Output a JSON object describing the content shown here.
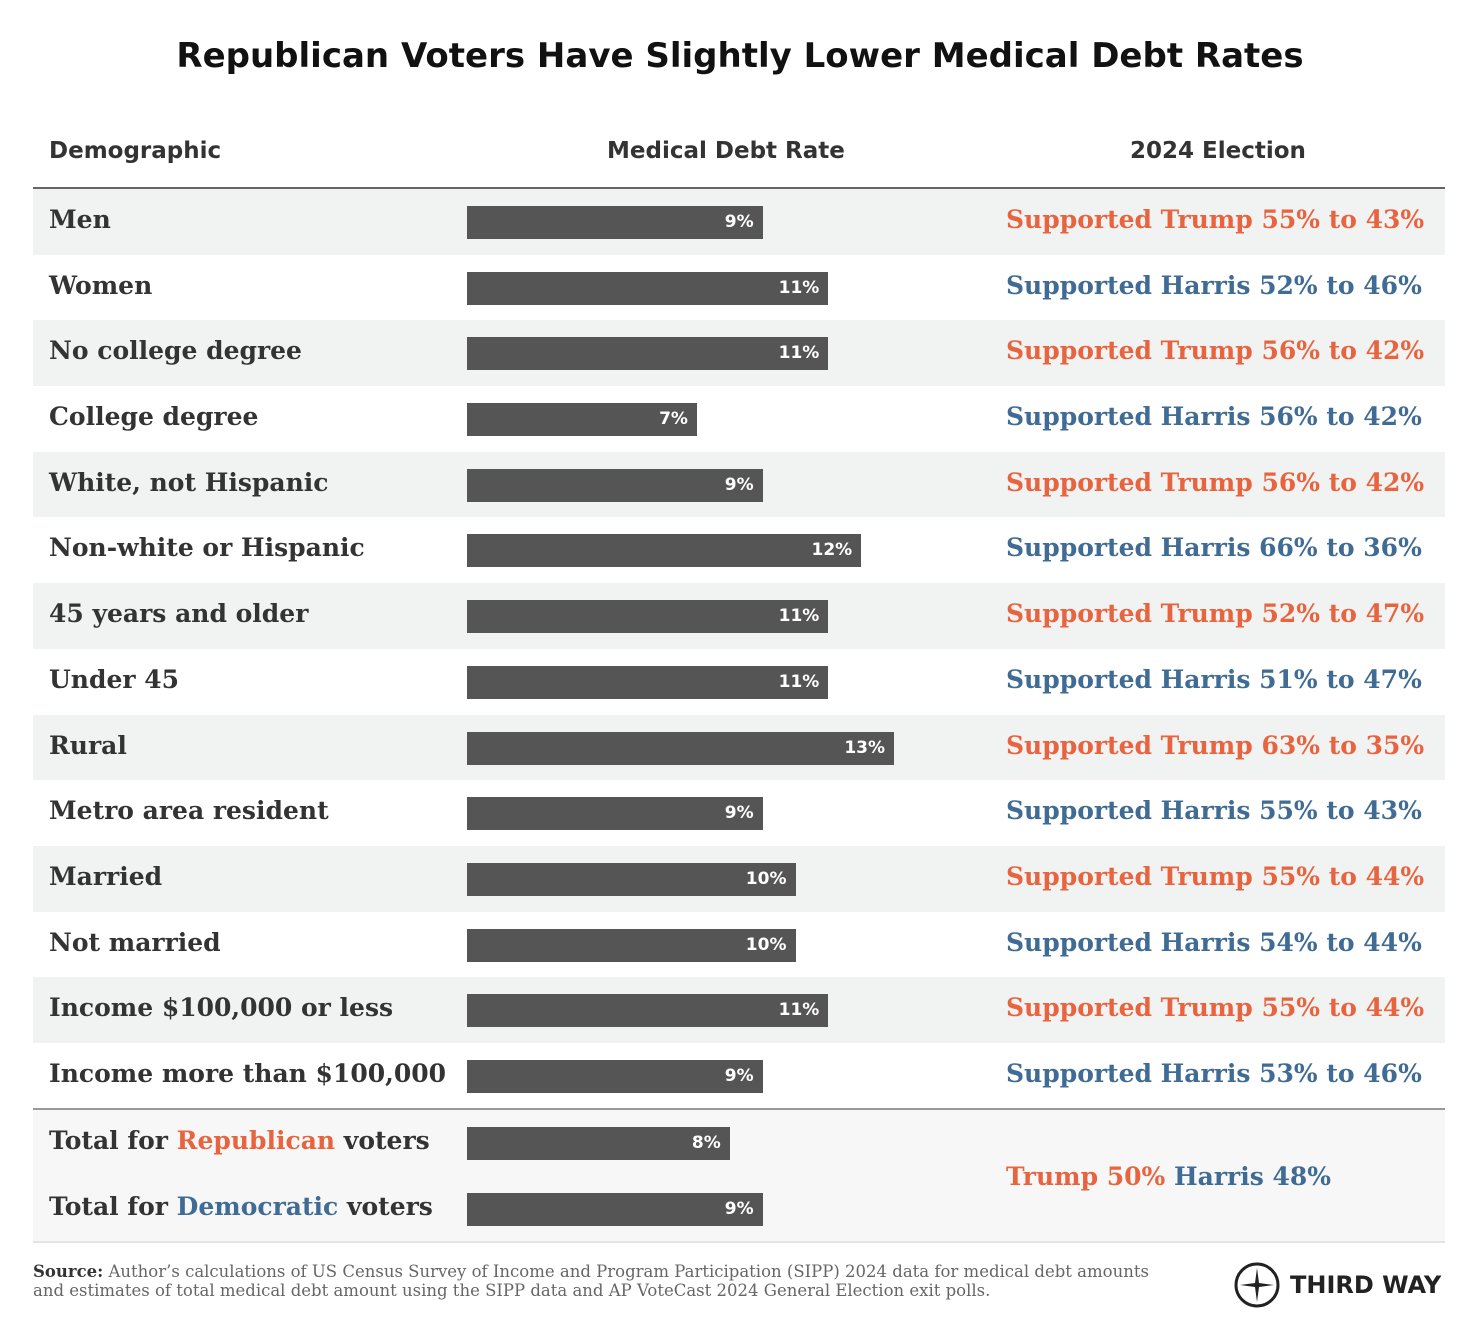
{
  "title": "Republican Voters Have Slightly Lower Medical Debt Rates",
  "headers": {
    "demographic": "Demographic",
    "rate": "Medical Debt Rate",
    "election": "2024 Election"
  },
  "colors": {
    "trump": "#e8643f",
    "harris": "#3f6b94",
    "bar": "#555555"
  },
  "chart_data": {
    "type": "bar",
    "orientation": "horizontal",
    "title": "Republican Voters Have Slightly Lower Medical Debt Rates",
    "categories": [
      "Men",
      "Women",
      "No college degree",
      "College degree",
      "White, not Hispanic",
      "Non-white or Hispanic",
      "45 years and older",
      "Under 45",
      "Rural",
      "Metro area resident",
      "Married",
      "Not married",
      "Income $100,000 or less",
      "Income more than $100,000"
    ],
    "values": [
      9,
      11,
      11,
      7,
      9,
      12,
      11,
      11,
      13,
      9,
      10,
      10,
      11,
      9
    ],
    "labels": [
      "9%",
      "11%",
      "11%",
      "7%",
      "9%",
      "12%",
      "11%",
      "11%",
      "13%",
      "9%",
      "10%",
      "10%",
      "11%",
      "9%"
    ],
    "election": [
      {
        "text": "Supported Trump 55% to 43%",
        "party": "trump"
      },
      {
        "text": "Supported Harris 52% to 46%",
        "party": "harris"
      },
      {
        "text": "Supported Trump 56% to 42%",
        "party": "trump"
      },
      {
        "text": "Supported Harris 56% to 42%",
        "party": "harris"
      },
      {
        "text": "Supported Trump 56% to 42%",
        "party": "trump"
      },
      {
        "text": "Supported Harris 66% to 36%",
        "party": "harris"
      },
      {
        "text": "Supported Trump 52% to 47%",
        "party": "trump"
      },
      {
        "text": "Supported Harris 51% to 47%",
        "party": "harris"
      },
      {
        "text": "Supported Trump 63% to 35%",
        "party": "trump"
      },
      {
        "text": "Supported Harris 55% to 43%",
        "party": "harris"
      },
      {
        "text": "Supported Trump 55% to 44%",
        "party": "trump"
      },
      {
        "text": "Supported Harris 54% to 44%",
        "party": "harris"
      },
      {
        "text": "Supported Trump 55% to 44%",
        "party": "trump"
      },
      {
        "text": "Supported Harris 53% to 46%",
        "party": "harris"
      }
    ],
    "totals": [
      {
        "prefix": "Total for ",
        "party_word": "Republican",
        "suffix": " voters",
        "party": "trump",
        "value": 8,
        "label": "8%"
      },
      {
        "prefix": "Total for ",
        "party_word": "Democratic",
        "suffix": " voters",
        "party": "harris",
        "value": 9,
        "label": "9%"
      }
    ],
    "totals_election": {
      "trump": "Trump 50%",
      "harris": "Harris 48%"
    }
  },
  "source": {
    "label": "Source:",
    "text": " Author’s calculations of US Census Survey of Income and Program Participation (SIPP) 2024 data for medical debt amounts and estimates of total medical debt amount using the SIPP data and AP VoteCast 2024 General Election exit polls."
  },
  "logo": {
    "text": "THIRD WAY",
    "icon": "compass-star-icon"
  }
}
